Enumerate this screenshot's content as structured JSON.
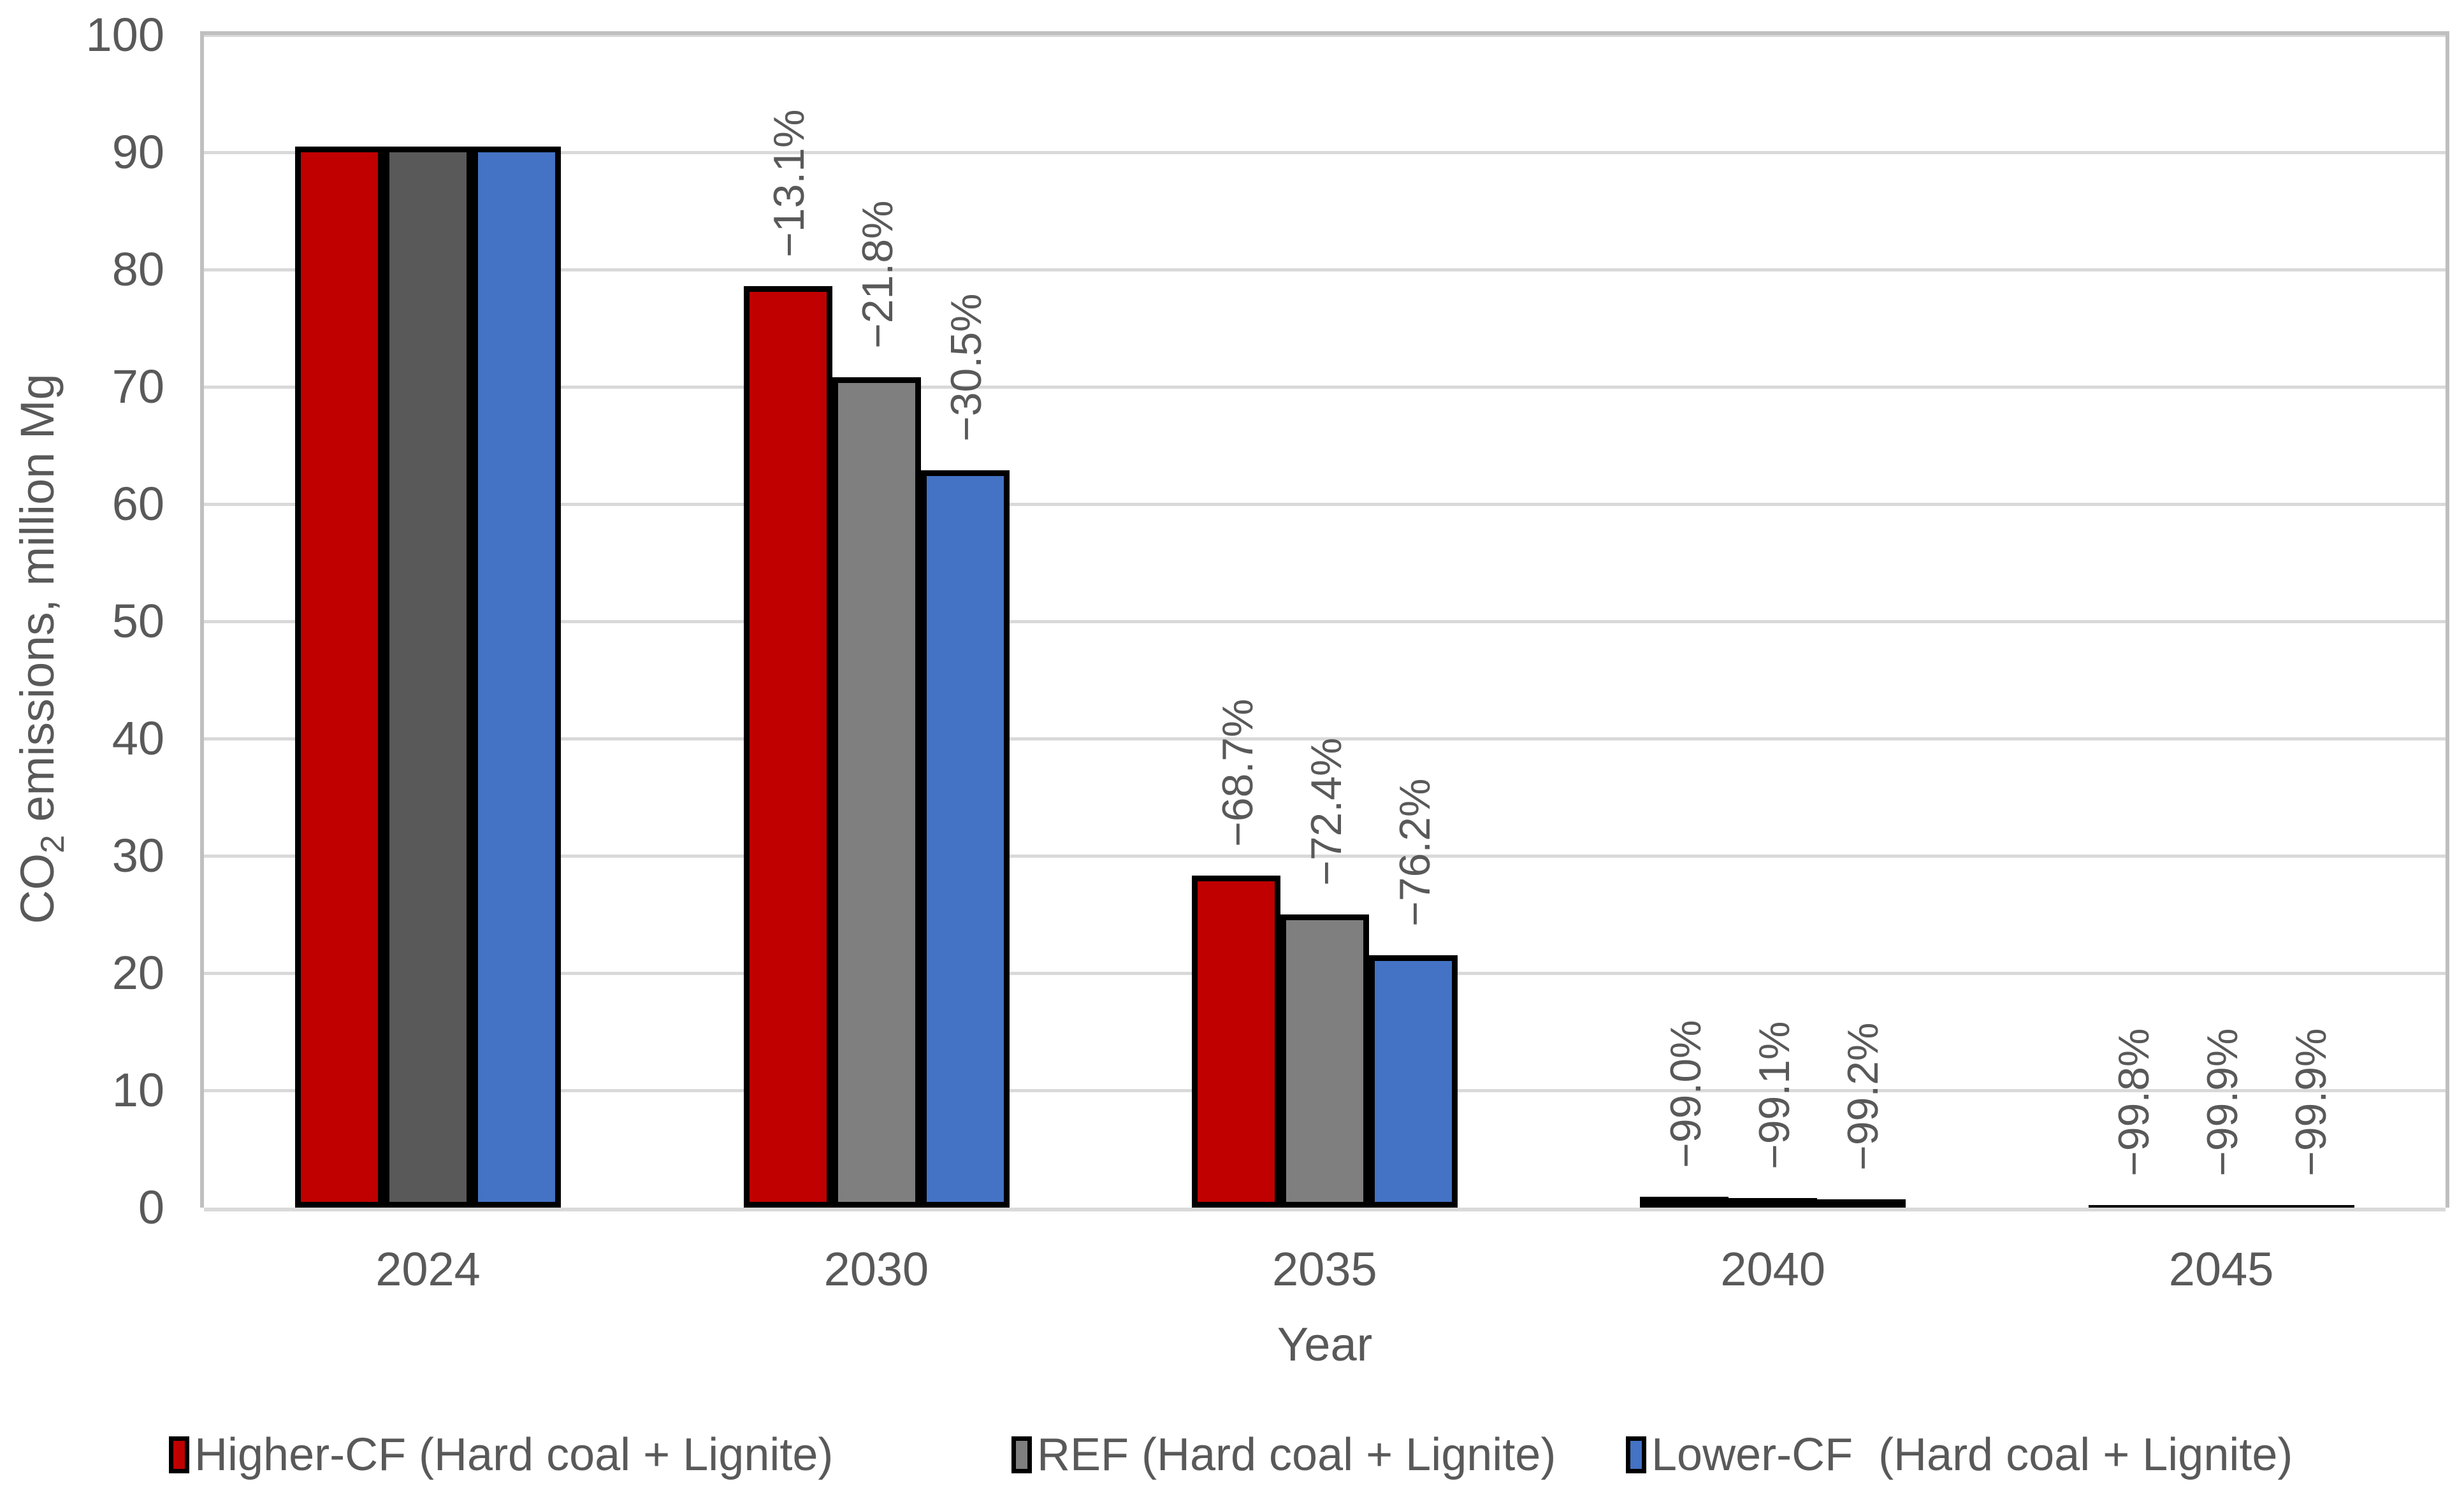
{
  "chart_data": {
    "type": "bar",
    "title": "",
    "xlabel": "Year",
    "ylabel_prefix": "CO",
    "ylabel_sub": "2",
    "ylabel_suffix": " emissions, million Mg",
    "ylim": [
      0,
      100
    ],
    "yticks": [
      0,
      10,
      20,
      30,
      40,
      50,
      60,
      70,
      80,
      90,
      100
    ],
    "grid": "horizontal",
    "legend_position": "bottom",
    "categories": [
      "2024",
      "2030",
      "2035",
      "2040",
      "2045"
    ],
    "series": [
      {
        "name": "Higher-CF (Hard coal + Lignite)",
        "color": "#C00000",
        "values": [
          90.5,
          78.6,
          28.3,
          0.9,
          0.2
        ],
        "point_labels": [
          "",
          "−13.1%",
          "−68.7%",
          "−99.0%",
          "−99.8%"
        ]
      },
      {
        "name": "REF (Hard coal + Lignite)",
        "color": "#7F7F7F",
        "point_colors": [
          "#595959",
          "#7F7F7F",
          "#7F7F7F",
          "#7F7F7F",
          "#7F7F7F"
        ],
        "values": [
          90.5,
          70.8,
          25.0,
          0.8,
          0.1
        ],
        "point_labels": [
          "",
          "−21.8%",
          "−72.4%",
          "−99.1%",
          "−99.9%"
        ]
      },
      {
        "name": "Lower-CF  (Hard coal + Lignite)",
        "color": "#4472C4",
        "values": [
          90.5,
          62.9,
          21.5,
          0.7,
          0.1
        ],
        "point_labels": [
          "",
          "−30.5%",
          "−76.2%",
          "−99.2%",
          "−99.9%"
        ]
      }
    ]
  },
  "colors": {
    "text": "#595959",
    "gridline": "#D9D9D9",
    "plot_border": "#BFBFBF",
    "bar_outline": "#000000",
    "background": "#FFFFFF"
  }
}
